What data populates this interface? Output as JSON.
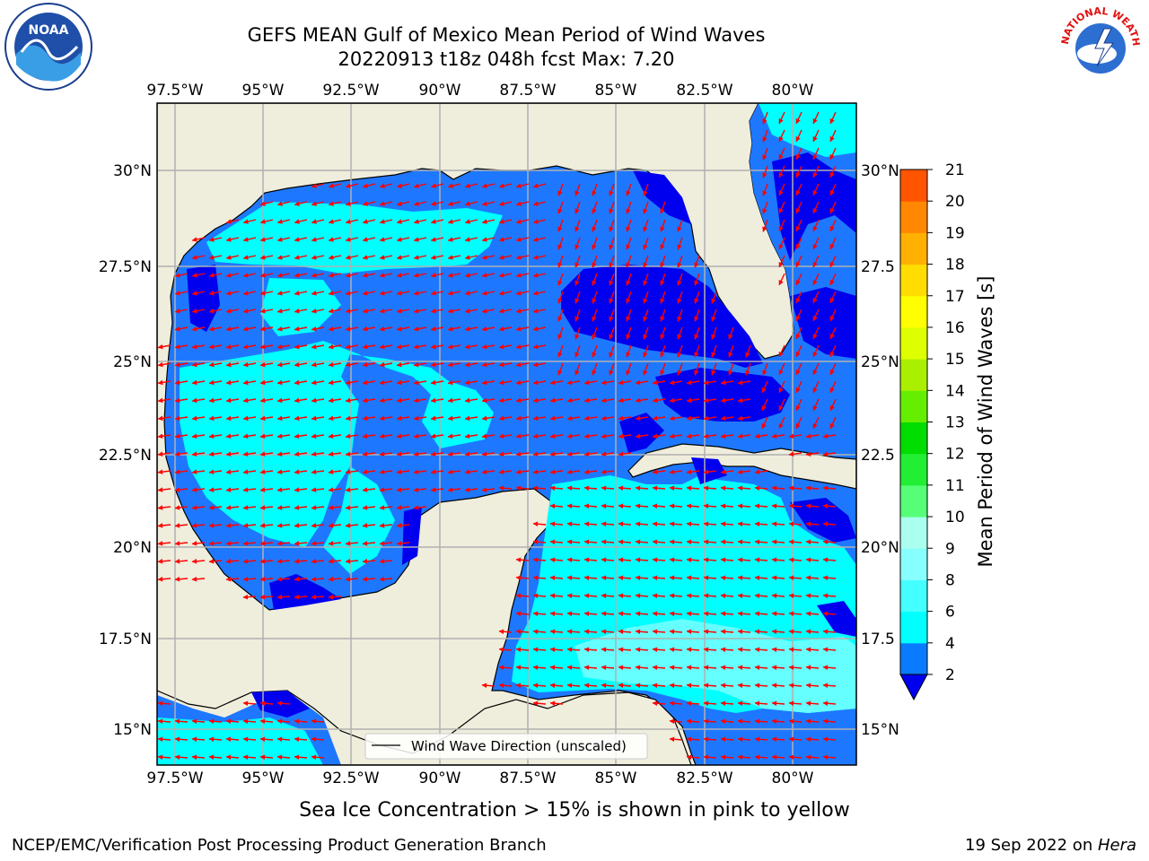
{
  "title": {
    "line1": "GEFS MEAN Gulf of Mexico Mean Period of Wind Waves",
    "line2": "20220913 t18z 048h fcst   Max: 7.20"
  },
  "map": {
    "lon_labels": [
      "97.5°W",
      "95°W",
      "92.5°W",
      "90°W",
      "87.5°W",
      "85°W",
      "82.5°W",
      "80°W"
    ],
    "lat_labels_left": [
      "30°N",
      "27.5°N",
      "25°N",
      "22.5°N",
      "20°N",
      "17.5°N",
      "15°N"
    ],
    "lat_labels_right": [
      "30°N",
      "27.5",
      "25°N",
      "22.5",
      "20°N",
      "17.5",
      "15°N"
    ],
    "legend_label": "Wind Wave Direction (unscaled)",
    "colors": {
      "land": "#efeddc",
      "ocean_dark": "#0000ee",
      "ocean_mid": "#1e78ff",
      "ocean_light": "#00ffff",
      "ocean_pale": "#66ffff",
      "arrow": "#ff0000",
      "grid": "#b0b0b0"
    }
  },
  "colorbar": {
    "label": "Mean Period of Wind Waves [s]",
    "ticks": [
      "2",
      "4",
      "6",
      "8",
      "9",
      "10",
      "11",
      "12",
      "13",
      "14",
      "15",
      "16",
      "17",
      "18",
      "19",
      "20",
      "21"
    ],
    "colors": [
      "#0a7bff",
      "#00ffff",
      "#44ffff",
      "#88ffff",
      "#aaffee",
      "#55ff77",
      "#22ee33",
      "#00dd00",
      "#66ee00",
      "#aaee00",
      "#ddff00",
      "#ffff00",
      "#ffdd00",
      "#ffb000",
      "#ff8800",
      "#ff5500",
      "#ff2200",
      "#ff0000"
    ],
    "extend_color": "#0000ee"
  },
  "footer": {
    "note": "Sea Ice Concentration > 15% is shown in pink to yellow",
    "credit": "NCEP/EMC/Verification Post Processing Product Generation Branch",
    "date_prefix": "19 Sep 2022 on ",
    "date_machine": "Hera"
  },
  "logos": {
    "noaa_text": "NOAA",
    "nws_text": "NATIONAL WEATHER SERVICE"
  }
}
